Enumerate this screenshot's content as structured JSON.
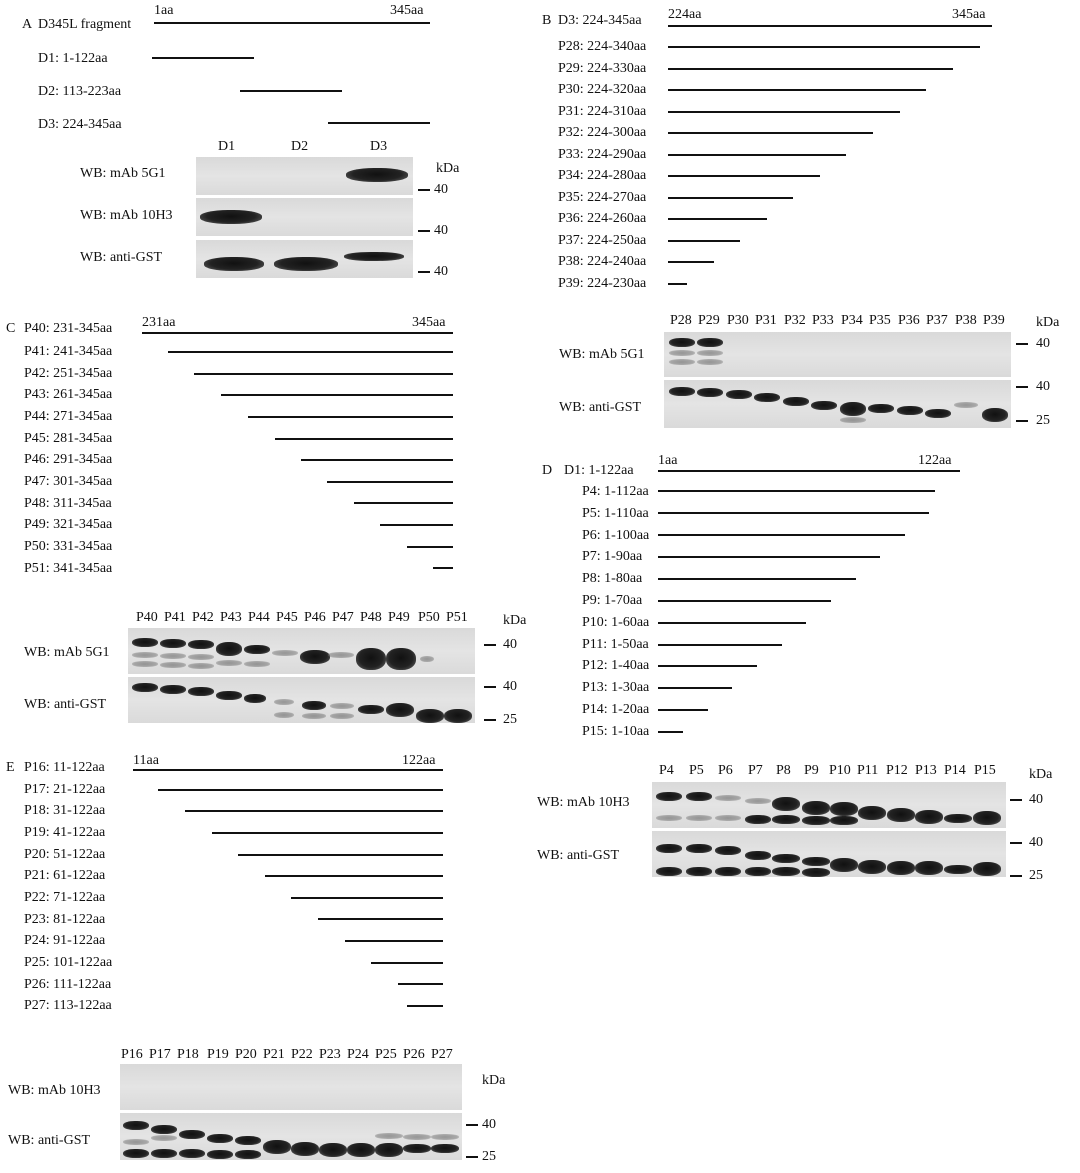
{
  "panelA": {
    "letter": "A",
    "title": "D345L fragment",
    "start": "1aa",
    "end": "345aa",
    "fragments": [
      "D1: 1-122aa",
      "D2: 113-223aa",
      "D3: 224-345aa"
    ],
    "lanes": [
      "D1",
      "D2",
      "D3"
    ],
    "blots": [
      "WB: mAb 5G1",
      "WB: mAb 10H3",
      "WB: anti-GST"
    ],
    "kda": "kDa",
    "markers": [
      "40",
      "40",
      "40"
    ]
  },
  "panelB": {
    "letter": "B",
    "header": "D3: 224-345aa",
    "start": "224aa",
    "end": "345aa",
    "fragments": [
      "P28: 224-340aa",
      "P29: 224-330aa",
      "P30: 224-320aa",
      "P31: 224-310aa",
      "P32: 224-300aa",
      "P33: 224-290aa",
      "P34: 224-280aa",
      "P35: 224-270aa",
      "P36: 224-260aa",
      "P37: 224-250aa",
      "P38: 224-240aa",
      "P39: 224-230aa"
    ],
    "lanes": [
      "P28",
      "P29",
      "P30",
      "P31",
      "P32",
      "P33",
      "P34",
      "P35",
      "P36",
      "P37",
      "P38",
      "P39"
    ],
    "blots": [
      "WB: mAb 5G1",
      "WB: anti-GST"
    ],
    "kda": "kDa",
    "markers": [
      "40",
      "40",
      "25"
    ]
  },
  "panelC": {
    "letter": "C",
    "header": "P40: 231-345aa",
    "start": "231aa",
    "end": "345aa",
    "fragments": [
      "P41: 241-345aa",
      "P42: 251-345aa",
      "P43: 261-345aa",
      "P44: 271-345aa",
      "P45: 281-345aa",
      "P46: 291-345aa",
      "P47: 301-345aa",
      "P48: 311-345aa",
      "P49: 321-345aa",
      "P50: 331-345aa",
      "P51: 341-345aa"
    ],
    "lanes": [
      "P40",
      "P41",
      "P42",
      "P43",
      "P44",
      "P45",
      "P46",
      "P47",
      "P48",
      "P49",
      "P50",
      "P51"
    ],
    "blots": [
      "WB: mAb 5G1",
      "WB: anti-GST"
    ],
    "kda": "kDa",
    "markers": [
      "40",
      "40",
      "25"
    ]
  },
  "panelD": {
    "letter": "D",
    "header": "D1: 1-122aa",
    "start": "1aa",
    "end": "122aa",
    "fragments": [
      "P4: 1-112aa",
      "P5: 1-110aa",
      "P6: 1-100aa",
      "P7: 1-90aa",
      "P8: 1-80aa",
      "P9: 1-70aa",
      "P10: 1-60aa",
      "P11: 1-50aa",
      "P12: 1-40aa",
      "P13: 1-30aa",
      "P14: 1-20aa",
      "P15: 1-10aa"
    ],
    "lanes": [
      "P4",
      "P5",
      "P6",
      "P7",
      "P8",
      "P9",
      "P10",
      "P11",
      "P12",
      "P13",
      "P14",
      "P15"
    ],
    "blots": [
      "WB: mAb 10H3",
      "WB: anti-GST"
    ],
    "kda": "kDa",
    "markers": [
      "40",
      "40",
      "25"
    ]
  },
  "panelE": {
    "letter": "E",
    "header": "P16: 11-122aa",
    "start": "11aa",
    "end": "122aa",
    "fragments": [
      "P17: 21-122aa",
      "P18: 31-122aa",
      "P19: 41-122aa",
      "P20: 51-122aa",
      "P21: 61-122aa",
      "P22: 71-122aa",
      "P23: 81-122aa",
      "P24: 91-122aa",
      "P25: 101-122aa",
      "P26: 111-122aa",
      "P27: 113-122aa"
    ],
    "lanes": [
      "P16",
      "P17",
      "P18",
      "P19",
      "P20",
      "P21",
      "P22",
      "P23",
      "P24",
      "P25",
      "P26",
      "P27"
    ],
    "blots": [
      "WB: mAb 10H3",
      "WB: anti-GST"
    ],
    "kda": "kDa",
    "markers": [
      "40",
      "25"
    ]
  }
}
